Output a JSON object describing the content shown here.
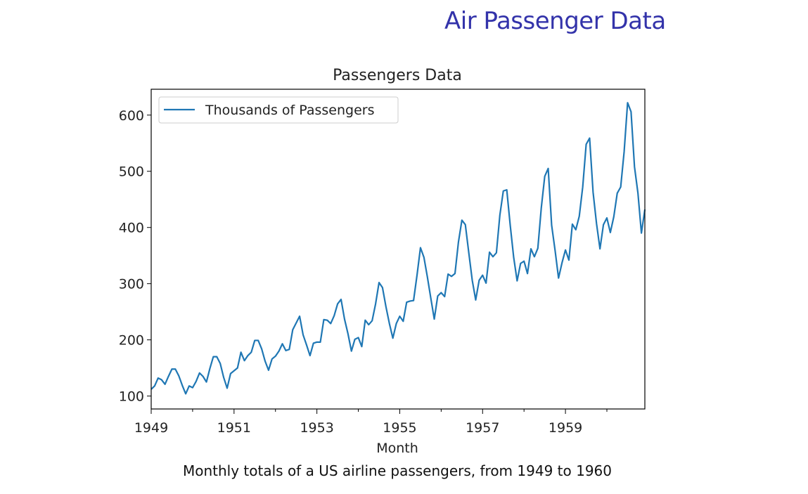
{
  "slide": {
    "title": "Air Passenger Data",
    "caption": "Monthly totals of a US airline passengers, from 1949 to 1960",
    "title_color": "#3333aa"
  },
  "chart_data": {
    "type": "line",
    "title": "Passengers Data",
    "xlabel": "Month",
    "ylabel": "",
    "x_start": "1949-01",
    "x_end": "1960-12",
    "x_frequency": "monthly",
    "xlim": [
      "1949-01",
      "1960-12"
    ],
    "ylim": [
      77,
      646
    ],
    "x_ticks": [
      "1949",
      "1951",
      "1953",
      "1955",
      "1957",
      "1959"
    ],
    "y_ticks": [
      100,
      200,
      300,
      400,
      500,
      600
    ],
    "grid": false,
    "legend_position": "upper-left",
    "series": [
      {
        "name": "Thousands of Passengers",
        "color": "#1f77b4",
        "values": [
          112,
          118,
          132,
          129,
          121,
          135,
          148,
          148,
          136,
          119,
          104,
          118,
          115,
          126,
          141,
          135,
          125,
          149,
          170,
          170,
          158,
          133,
          114,
          140,
          145,
          150,
          178,
          163,
          172,
          178,
          199,
          199,
          184,
          162,
          146,
          166,
          171,
          180,
          193,
          181,
          183,
          218,
          230,
          242,
          209,
          191,
          172,
          194,
          196,
          196,
          236,
          235,
          229,
          243,
          264,
          272,
          237,
          211,
          180,
          201,
          204,
          188,
          235,
          227,
          234,
          264,
          302,
          293,
          259,
          229,
          203,
          229,
          242,
          233,
          267,
          269,
          270,
          315,
          364,
          347,
          312,
          274,
          237,
          278,
          284,
          277,
          317,
          313,
          318,
          374,
          413,
          405,
          355,
          306,
          271,
          306,
          315,
          301,
          356,
          348,
          355,
          422,
          465,
          467,
          404,
          347,
          305,
          336,
          340,
          318,
          362,
          348,
          363,
          435,
          491,
          505,
          404,
          359,
          310,
          337,
          360,
          342,
          406,
          396,
          420,
          472,
          548,
          559,
          463,
          407,
          362,
          405,
          417,
          391,
          419,
          461,
          472,
          535,
          622,
          606,
          508,
          461,
          390,
          432
        ]
      }
    ]
  }
}
